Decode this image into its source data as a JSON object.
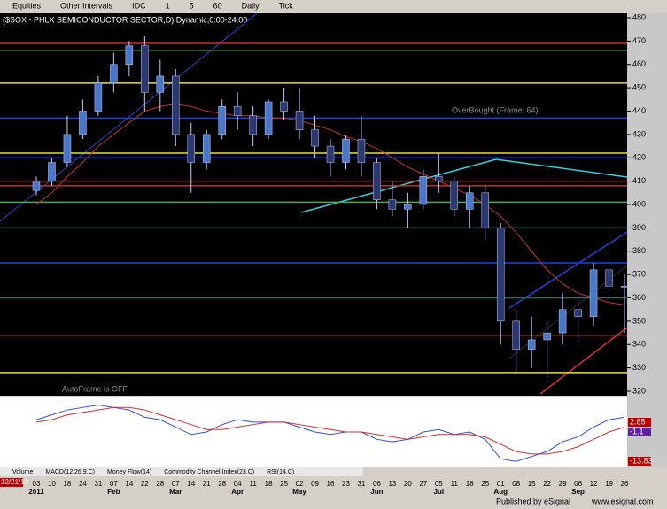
{
  "toolbar": [
    "Equities",
    "Other Intervals",
    "IDC",
    "1",
    "5",
    "60",
    "Daily",
    "Tick"
  ],
  "chart_data": {
    "type": "candlestick",
    "title": "($SOX - PHLX SEMICONDUCTOR SECTOR,D) Dynamic,0:00-24:00",
    "x": [
      "03",
      "10",
      "18",
      "24",
      "31",
      "07",
      "14",
      "22",
      "28",
      "07",
      "14",
      "21",
      "28",
      "04",
      "11",
      "18",
      "25",
      "02",
      "09",
      "16",
      "23",
      "31",
      "06",
      "13",
      "20",
      "27",
      "05",
      "11",
      "18",
      "25",
      "01",
      "08",
      "15",
      "22",
      "29",
      "06",
      "12",
      "19",
      "26"
    ],
    "months": [
      {
        "label": "2011",
        "index": 0
      },
      {
        "label": "Feb",
        "index": 5
      },
      {
        "label": "Mar",
        "index": 9
      },
      {
        "label": "Apr",
        "index": 13
      },
      {
        "label": "May",
        "index": 17
      },
      {
        "label": "Jun",
        "index": 22
      },
      {
        "label": "Jul",
        "index": 26
      },
      {
        "label": "Aug",
        "index": 30
      },
      {
        "label": "Sep",
        "index": 35
      }
    ],
    "open": [
      406,
      410,
      418,
      430,
      440,
      452,
      460,
      468,
      448,
      455,
      430,
      418,
      430,
      442,
      438,
      430,
      444,
      440,
      432,
      425,
      418,
      428,
      418,
      402,
      398,
      400,
      412,
      410,
      398,
      405,
      390,
      350,
      338,
      342,
      345,
      355,
      352,
      372,
      365
    ],
    "high": [
      412,
      420,
      438,
      445,
      455,
      465,
      470,
      472,
      462,
      458,
      435,
      432,
      445,
      448,
      442,
      445,
      450,
      450,
      438,
      428,
      430,
      438,
      420,
      410,
      405,
      415,
      422,
      412,
      408,
      408,
      392,
      355,
      352,
      350,
      362,
      362,
      375,
      380,
      370
    ],
    "low": [
      404,
      408,
      416,
      428,
      438,
      448,
      455,
      440,
      440,
      425,
      405,
      415,
      428,
      432,
      425,
      428,
      436,
      428,
      420,
      412,
      415,
      412,
      398,
      395,
      390,
      398,
      405,
      395,
      390,
      385,
      340,
      328,
      330,
      325,
      340,
      340,
      348,
      360,
      345
    ],
    "close": [
      410,
      418,
      430,
      440,
      452,
      460,
      468,
      448,
      455,
      430,
      418,
      430,
      442,
      438,
      430,
      444,
      440,
      432,
      425,
      418,
      428,
      418,
      402,
      398,
      400,
      412,
      410,
      398,
      405,
      390,
      350,
      338,
      342,
      345,
      355,
      352,
      372,
      365,
      365
    ],
    "up_color": "#4a78c8",
    "down_color": "#2a3a70",
    "ma": {
      "color": "#c03030",
      "values": [
        400,
        405,
        412,
        418,
        425,
        430,
        435,
        440,
        442,
        443,
        442,
        440,
        439,
        438,
        438,
        437,
        437,
        436,
        434,
        432,
        429,
        427,
        424,
        420,
        416,
        413,
        410,
        407,
        404,
        400,
        395,
        388,
        380,
        372,
        366,
        362,
        360,
        358,
        357
      ]
    },
    "levels": [
      {
        "value": 469,
        "color": "#c03030"
      },
      {
        "value": 466,
        "color": "#3a8a3a"
      },
      {
        "value": 452,
        "color": "#e8e030"
      },
      {
        "value": 437,
        "color": "#2040d0"
      },
      {
        "value": 422,
        "color": "#e8e030"
      },
      {
        "value": 420,
        "color": "#2040d0"
      },
      {
        "value": 410,
        "color": "#c03030"
      },
      {
        "value": 408,
        "color": "#c03030"
      },
      {
        "value": 401,
        "color": "#40b040"
      },
      {
        "value": 390,
        "color": "#2f6f5f"
      },
      {
        "value": 375,
        "color": "#2040d0"
      },
      {
        "value": 360,
        "color": "#2f6f5f"
      },
      {
        "value": 344,
        "color": "#c03030"
      },
      {
        "value": 328,
        "color": "#e8e030"
      }
    ],
    "ylim": [
      320,
      480
    ],
    "yticks": [
      320,
      330,
      340,
      350,
      360,
      370,
      380,
      390,
      400,
      410,
      420,
      430,
      440,
      450,
      460,
      470,
      480
    ],
    "annotations": [
      "OverBought (Frame: 64)",
      "AutoFrame is OFF"
    ],
    "macd": {
      "ylim": [
        -16,
        10
      ],
      "series": [
        {
          "color": "#3050e0",
          "values": [
            2,
            4,
            6,
            7,
            8,
            7,
            6,
            3,
            2,
            -1,
            -4,
            -3,
            0,
            2,
            1,
            1,
            1,
            -1,
            -3,
            -4,
            -3,
            -3,
            -6,
            -7,
            -6,
            -3,
            -2,
            -4,
            -3,
            -6,
            -14,
            -15,
            -13,
            -11,
            -7,
            -5,
            -1,
            2,
            3
          ]
        },
        {
          "color": "#d03030",
          "values": [
            1,
            2,
            4,
            5,
            6,
            7,
            7,
            6,
            4,
            2,
            0,
            -2,
            -2,
            -1,
            0,
            1,
            1,
            0,
            -1,
            -2,
            -3,
            -3,
            -4,
            -5,
            -6,
            -5,
            -4,
            -4,
            -4,
            -5,
            -8,
            -11,
            -12,
            -12,
            -11,
            -9,
            -6,
            -3,
            -1
          ]
        }
      ],
      "readouts": [
        "2.65",
        "-1.1",
        "-13.83"
      ]
    }
  },
  "tabs": [
    "Volume",
    "MACD(12,26,9,C)",
    "Money Flow(14)",
    "Commodity Channel Index(23,C)",
    "RSI(14,C)"
  ],
  "date": "12/21/10",
  "footer": [
    "Published by eSignal",
    "www.esignal.com"
  ]
}
